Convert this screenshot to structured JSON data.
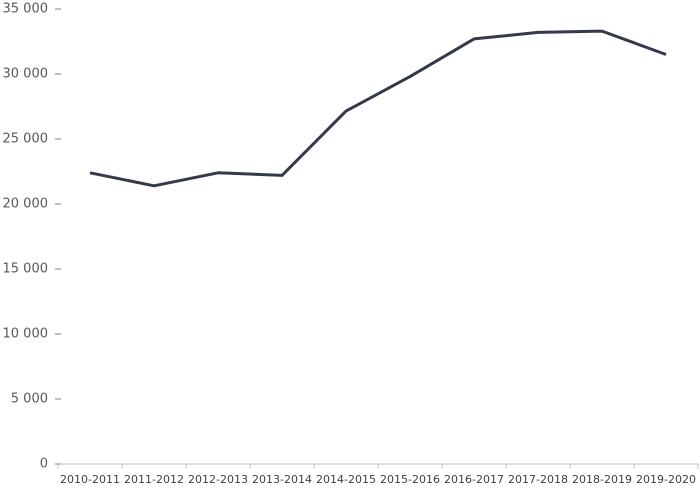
{
  "chart_data": {
    "type": "line",
    "categories": [
      "2010-2011",
      "2011-2012",
      "2012-2013",
      "2013-2014",
      "2014-2015",
      "2015-2016",
      "2016-2017",
      "2017-2018",
      "2018-2019",
      "2019-2020"
    ],
    "series": [
      {
        "color": "#343a48",
        "values": [
          22400,
          21400,
          22400,
          22200,
          27150,
          29800,
          32700,
          33200,
          33300,
          31500
        ]
      }
    ],
    "ylim": [
      0,
      35000
    ],
    "yticks": [
      0,
      {
        "value": 5000,
        "label": "5 000"
      },
      {
        "value": 10000,
        "label": "10 000"
      },
      {
        "value": 15000,
        "label": "15 000"
      },
      {
        "value": 20000,
        "label": "20 000"
      },
      {
        "value": 25000,
        "label": "25 000"
      },
      {
        "value": 30000,
        "label": "30 000"
      },
      {
        "value": 35000,
        "label": "35 000"
      }
    ],
    "grid": false
  }
}
